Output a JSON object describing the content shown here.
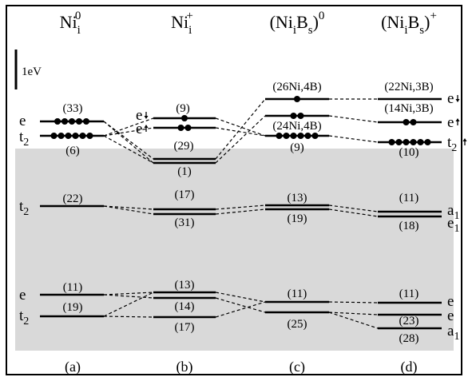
{
  "headers": [
    {
      "base": "Ni",
      "sub": "i",
      "sup": "0"
    },
    {
      "base": "Ni",
      "sub": "i",
      "sup": "+"
    },
    {
      "base": "(Ni",
      "sub": "i",
      "mid": "B",
      "sub2": "s",
      "close": ")",
      "sup": "0"
    },
    {
      "base": "(Ni",
      "sub": "i",
      "mid": "B",
      "sub2": "s",
      "close": ")",
      "sup": "+"
    }
  ],
  "scale_label": "1eV",
  "panel_labels": [
    "(a)",
    "(b)",
    "(c)",
    "(d)"
  ],
  "columns": {
    "a": {
      "lines": [
        {
          "id": "a-e-up",
          "tag": "(33)",
          "electrons": 5
        },
        {
          "id": "a-t2-up",
          "tag": "(6)",
          "electrons": 6
        },
        {
          "id": "a-t2-mid",
          "tag": "(22)"
        },
        {
          "id": "a-e-low",
          "tag": "(11)"
        },
        {
          "id": "a-t2-low",
          "tag": "(19)"
        }
      ],
      "symmetry": [
        {
          "main": "e"
        },
        {
          "main": "t",
          "sub": "2"
        },
        {
          "main": "t",
          "sub": "2"
        },
        {
          "main": "e"
        },
        {
          "main": "t",
          "sub": "2"
        }
      ]
    },
    "b": {
      "lines": [
        {
          "id": "b-1",
          "tag": "(9)",
          "electrons": 1
        },
        {
          "id": "b-2",
          "tag": "",
          "electrons": 2
        },
        {
          "id": "b-3",
          "tag": "(29)"
        },
        {
          "id": "b-4",
          "tag": "(1)"
        },
        {
          "id": "b-5",
          "tag": "(17)"
        },
        {
          "id": "b-6",
          "tag": "(31)"
        },
        {
          "id": "b-7",
          "tag": "(13)"
        },
        {
          "id": "b-8",
          "tag": "(14)"
        },
        {
          "id": "b-9",
          "tag": "(17)"
        }
      ],
      "symmetry": [
        {
          "main": "e",
          "spin": "down"
        },
        {
          "main": "e",
          "spin": "up"
        }
      ]
    },
    "c": {
      "lines": [
        {
          "id": "c-1",
          "tag": "(26Ni,4B)",
          "electrons": 1
        },
        {
          "id": "c-2",
          "tag": "(24Ni,4B)",
          "electrons": 2
        },
        {
          "id": "c-3",
          "tag": "(9)",
          "electrons": 6
        },
        {
          "id": "c-4",
          "tag": "(13)"
        },
        {
          "id": "c-5",
          "tag": "(19)"
        },
        {
          "id": "c-6",
          "tag": "(11)"
        },
        {
          "id": "c-7",
          "tag": "(25)"
        }
      ]
    },
    "d": {
      "lines": [
        {
          "id": "d-1",
          "tag": "(22Ni,3B)",
          "electrons": 0
        },
        {
          "id": "d-2",
          "tag": "(14Ni,3B)",
          "electrons": 2
        },
        {
          "id": "d-3",
          "tag": "(10)",
          "electrons": 6
        },
        {
          "id": "d-4",
          "tag": "(11)"
        },
        {
          "id": "d-5",
          "tag": "(18)"
        },
        {
          "id": "d-6",
          "tag": "(11)"
        },
        {
          "id": "d-7",
          "tag": "(23)"
        },
        {
          "id": "d-8",
          "tag": "(28)"
        }
      ],
      "symmetry": [
        {
          "main": "e",
          "spin": "down"
        },
        {
          "main": "e",
          "spin": "up"
        },
        {
          "main": "t",
          "sub": "2",
          "spin": "up"
        },
        {
          "main": "a",
          "sub": "1"
        },
        {
          "main": "e",
          "sub": "1"
        },
        {
          "main": "e"
        },
        {
          "main": "e"
        },
        {
          "main": "a",
          "sub": "1"
        }
      ]
    }
  },
  "colors": {
    "band_shade": "#d9d9d9",
    "ink": "#000000"
  }
}
